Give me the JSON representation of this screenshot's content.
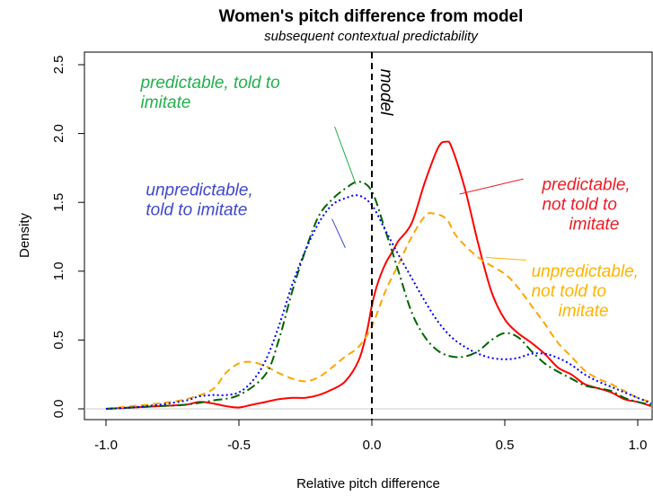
{
  "chart_data": {
    "type": "line",
    "title": "Women's pitch difference from model",
    "subtitle": "subsequent contextual predictability",
    "xlabel": "Relative pitch difference",
    "ylabel": "Density",
    "xlim": [
      -1.0,
      1.0
    ],
    "ylim": [
      0.0,
      2.5
    ],
    "xticks": [
      -1.0,
      -0.5,
      0.0,
      0.5,
      1.0
    ],
    "xtick_labels": [
      "-1.0",
      "-0.5",
      "0.0",
      "0.5",
      "1.0"
    ],
    "yticks": [
      0.0,
      0.5,
      1.0,
      1.5,
      2.0,
      2.5
    ],
    "ytick_labels": [
      "0.0",
      "0.5",
      "1.0",
      "1.5",
      "2.0",
      "2.5"
    ],
    "grid": false,
    "series": [
      {
        "name": "predictable, not told to imitate",
        "color": "#ff0000",
        "style": "solid",
        "points": [
          [
            -1.0,
            0.0
          ],
          [
            -0.9,
            0.01
          ],
          [
            -0.8,
            0.02
          ],
          [
            -0.7,
            0.03
          ],
          [
            -0.65,
            0.05
          ],
          [
            -0.6,
            0.04
          ],
          [
            -0.55,
            0.02
          ],
          [
            -0.5,
            0.01
          ],
          [
            -0.45,
            0.03
          ],
          [
            -0.4,
            0.05
          ],
          [
            -0.35,
            0.07
          ],
          [
            -0.3,
            0.08
          ],
          [
            -0.25,
            0.08
          ],
          [
            -0.2,
            0.1
          ],
          [
            -0.15,
            0.14
          ],
          [
            -0.1,
            0.2
          ],
          [
            -0.05,
            0.35
          ],
          [
            -0.02,
            0.55
          ],
          [
            0.0,
            0.75
          ],
          [
            0.02,
            0.9
          ],
          [
            0.05,
            1.05
          ],
          [
            0.08,
            1.15
          ],
          [
            0.1,
            1.22
          ],
          [
            0.15,
            1.35
          ],
          [
            0.2,
            1.65
          ],
          [
            0.25,
            1.9
          ],
          [
            0.28,
            1.94
          ],
          [
            0.3,
            1.9
          ],
          [
            0.35,
            1.6
          ],
          [
            0.4,
            1.2
          ],
          [
            0.45,
            0.85
          ],
          [
            0.5,
            0.65
          ],
          [
            0.55,
            0.55
          ],
          [
            0.6,
            0.48
          ],
          [
            0.65,
            0.4
          ],
          [
            0.7,
            0.3
          ],
          [
            0.75,
            0.25
          ],
          [
            0.8,
            0.18
          ],
          [
            0.85,
            0.15
          ],
          [
            0.9,
            0.12
          ],
          [
            0.95,
            0.07
          ],
          [
            1.0,
            0.05
          ],
          [
            1.05,
            0.02
          ]
        ]
      },
      {
        "name": "unpredictable, not told to imitate",
        "color": "#ffa500",
        "style": "dashed",
        "points": [
          [
            -1.0,
            0.0
          ],
          [
            -0.9,
            0.02
          ],
          [
            -0.8,
            0.04
          ],
          [
            -0.7,
            0.07
          ],
          [
            -0.6,
            0.14
          ],
          [
            -0.55,
            0.26
          ],
          [
            -0.5,
            0.33
          ],
          [
            -0.45,
            0.34
          ],
          [
            -0.4,
            0.31
          ],
          [
            -0.35,
            0.26
          ],
          [
            -0.3,
            0.22
          ],
          [
            -0.25,
            0.2
          ],
          [
            -0.2,
            0.23
          ],
          [
            -0.15,
            0.3
          ],
          [
            -0.1,
            0.38
          ],
          [
            -0.05,
            0.45
          ],
          [
            0.0,
            0.6
          ],
          [
            0.05,
            0.85
          ],
          [
            0.1,
            1.05
          ],
          [
            0.15,
            1.25
          ],
          [
            0.2,
            1.4
          ],
          [
            0.23,
            1.42
          ],
          [
            0.28,
            1.38
          ],
          [
            0.32,
            1.25
          ],
          [
            0.4,
            1.1
          ],
          [
            0.5,
            0.98
          ],
          [
            0.55,
            0.88
          ],
          [
            0.6,
            0.75
          ],
          [
            0.65,
            0.62
          ],
          [
            0.7,
            0.48
          ],
          [
            0.75,
            0.38
          ],
          [
            0.8,
            0.28
          ],
          [
            0.85,
            0.22
          ],
          [
            0.9,
            0.18
          ],
          [
            0.95,
            0.13
          ],
          [
            1.0,
            0.08
          ],
          [
            1.05,
            0.05
          ]
        ]
      },
      {
        "name": "predictable, told to imitate",
        "color": "#006400",
        "style": "dotdash",
        "points": [
          [
            -1.0,
            0.0
          ],
          [
            -0.9,
            0.01
          ],
          [
            -0.8,
            0.02
          ],
          [
            -0.7,
            0.03
          ],
          [
            -0.6,
            0.06
          ],
          [
            -0.5,
            0.1
          ],
          [
            -0.4,
            0.25
          ],
          [
            -0.35,
            0.5
          ],
          [
            -0.3,
            0.85
          ],
          [
            -0.25,
            1.15
          ],
          [
            -0.2,
            1.4
          ],
          [
            -0.15,
            1.52
          ],
          [
            -0.1,
            1.6
          ],
          [
            -0.05,
            1.65
          ],
          [
            0.0,
            1.58
          ],
          [
            0.05,
            1.3
          ],
          [
            0.1,
            1.0
          ],
          [
            0.15,
            0.7
          ],
          [
            0.2,
            0.52
          ],
          [
            0.25,
            0.42
          ],
          [
            0.3,
            0.38
          ],
          [
            0.35,
            0.38
          ],
          [
            0.4,
            0.42
          ],
          [
            0.45,
            0.5
          ],
          [
            0.5,
            0.55
          ],
          [
            0.55,
            0.52
          ],
          [
            0.6,
            0.42
          ],
          [
            0.65,
            0.33
          ],
          [
            0.7,
            0.27
          ],
          [
            0.75,
            0.22
          ],
          [
            0.8,
            0.17
          ],
          [
            0.85,
            0.15
          ],
          [
            0.9,
            0.13
          ],
          [
            0.95,
            0.08
          ],
          [
            1.0,
            0.05
          ],
          [
            1.05,
            0.03
          ]
        ]
      },
      {
        "name": "unpredictable, told to imitate",
        "color": "#0000ff",
        "style": "dotted",
        "points": [
          [
            -1.0,
            0.0
          ],
          [
            -0.9,
            0.01
          ],
          [
            -0.8,
            0.03
          ],
          [
            -0.7,
            0.06
          ],
          [
            -0.65,
            0.09
          ],
          [
            -0.6,
            0.1
          ],
          [
            -0.55,
            0.1
          ],
          [
            -0.5,
            0.12
          ],
          [
            -0.45,
            0.2
          ],
          [
            -0.4,
            0.35
          ],
          [
            -0.35,
            0.6
          ],
          [
            -0.3,
            0.9
          ],
          [
            -0.25,
            1.15
          ],
          [
            -0.2,
            1.35
          ],
          [
            -0.15,
            1.48
          ],
          [
            -0.1,
            1.53
          ],
          [
            -0.05,
            1.55
          ],
          [
            0.0,
            1.48
          ],
          [
            0.05,
            1.3
          ],
          [
            0.1,
            1.12
          ],
          [
            0.15,
            0.95
          ],
          [
            0.2,
            0.78
          ],
          [
            0.25,
            0.63
          ],
          [
            0.3,
            0.52
          ],
          [
            0.35,
            0.45
          ],
          [
            0.4,
            0.4
          ],
          [
            0.45,
            0.37
          ],
          [
            0.5,
            0.36
          ],
          [
            0.55,
            0.37
          ],
          [
            0.6,
            0.4
          ],
          [
            0.65,
            0.4
          ],
          [
            0.7,
            0.37
          ],
          [
            0.75,
            0.32
          ],
          [
            0.8,
            0.25
          ],
          [
            0.85,
            0.2
          ],
          [
            0.9,
            0.16
          ],
          [
            0.95,
            0.12
          ],
          [
            1.0,
            0.08
          ],
          [
            1.05,
            0.04
          ]
        ]
      }
    ],
    "reference_line": {
      "x": 0.0,
      "label": "model",
      "style": "dashed",
      "color": "#000000"
    },
    "annotations": [
      {
        "lines": [
          "predictable, told to",
          "imitate"
        ],
        "color": "#22b14c",
        "anchor": "start",
        "text_at": [
          -0.87,
          2.33
        ],
        "leader_from": [
          -0.14,
          2.05
        ],
        "leader_to": [
          -0.06,
          1.63
        ]
      },
      {
        "lines": [
          "unpredictable,",
          "told to imitate"
        ],
        "color": "#3f48cc",
        "anchor": "start",
        "text_at": [
          -0.85,
          1.55
        ],
        "leader_from": [
          -0.15,
          1.38
        ],
        "leader_to": [
          -0.1,
          1.17
        ]
      },
      {
        "lines": [
          "predictable,",
          "not told to",
          "imitate"
        ],
        "color": "#ed1c24",
        "anchor": "start",
        "text_at": [
          0.64,
          1.59
        ],
        "leader_from": [
          0.57,
          1.67
        ],
        "leader_to": [
          0.33,
          1.56
        ]
      },
      {
        "lines": [
          "unpredictable,",
          "not told to",
          "imitate"
        ],
        "color": "#ffb300",
        "anchor": "start",
        "text_at": [
          0.6,
          0.96
        ],
        "leader_from": [
          0.58,
          1.08
        ],
        "leader_to": [
          0.43,
          1.1
        ]
      }
    ]
  }
}
